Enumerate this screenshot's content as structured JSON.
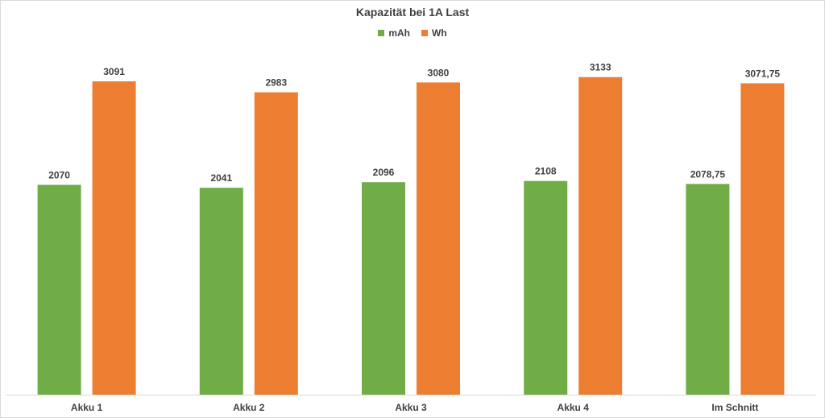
{
  "chart_data": {
    "type": "bar",
    "title": "Kapazität bei 1A Last",
    "categories": [
      "Akku 1",
      "Akku 2",
      "Akku 3",
      "Akku 4",
      "Im Schnitt"
    ],
    "series": [
      {
        "name": "mAh",
        "color": "#70ad47",
        "values": [
          2070,
          2041,
          2096,
          2108,
          2078.75
        ],
        "labels": [
          "2070",
          "2041",
          "2096",
          "2108",
          "2078,75"
        ]
      },
      {
        "name": "Wh",
        "color": "#ed7d31",
        "values": [
          3091,
          2983,
          3080,
          3133,
          3071.75
        ],
        "labels": [
          "3091",
          "2983",
          "3080",
          "3133",
          "3071,75"
        ]
      }
    ],
    "ylim": [
      0,
      3500
    ],
    "grid": false,
    "legend_position": "top"
  }
}
